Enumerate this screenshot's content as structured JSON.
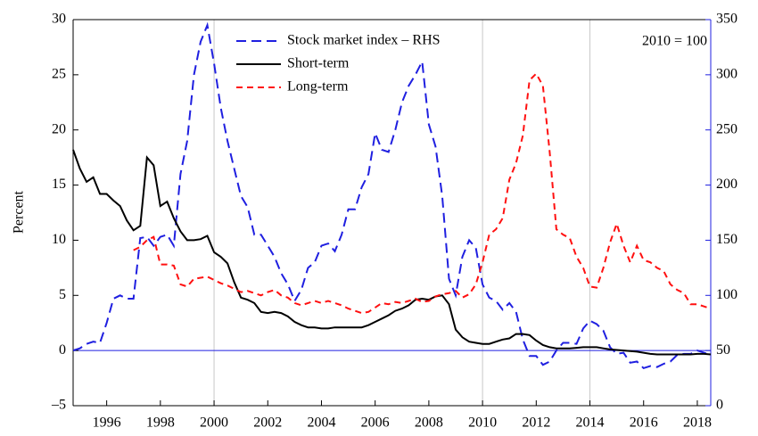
{
  "chart_data": {
    "type": "line",
    "y_label": "Percent",
    "annotation": "2010 = 100",
    "x": [
      1994.75,
      1995,
      1995.25,
      1995.5,
      1995.75,
      1996,
      1996.25,
      1996.5,
      1996.75,
      1997,
      1997.25,
      1997.5,
      1997.75,
      1998,
      1998.25,
      1998.5,
      1998.75,
      1999,
      1999.25,
      1999.5,
      1999.75,
      2000,
      2000.25,
      2000.5,
      2000.75,
      2001,
      2001.25,
      2001.5,
      2001.75,
      2002,
      2002.25,
      2002.5,
      2002.75,
      2003,
      2003.25,
      2003.5,
      2003.75,
      2004,
      2004.25,
      2004.5,
      2004.75,
      2005,
      2005.25,
      2005.5,
      2005.75,
      2006,
      2006.25,
      2006.5,
      2006.75,
      2007,
      2007.25,
      2007.5,
      2007.75,
      2008,
      2008.25,
      2008.5,
      2008.75,
      2009,
      2009.25,
      2009.5,
      2009.75,
      2010,
      2010.25,
      2010.5,
      2010.75,
      2011,
      2011.25,
      2011.5,
      2011.75,
      2012,
      2012.25,
      2012.5,
      2012.75,
      2013,
      2013.25,
      2013.5,
      2013.75,
      2014,
      2014.25,
      2014.5,
      2014.75,
      2015,
      2015.25,
      2015.5,
      2015.75,
      2016,
      2016.25,
      2016.5,
      2016.75,
      2017,
      2017.25,
      2017.5,
      2017.75,
      2018,
      2018.25,
      2018.5
    ],
    "series": [
      {
        "name": "Stock market index – RHS",
        "color": "#1f1fe0",
        "dash": "11,6",
        "axis": "y2",
        "values": [
          50,
          52,
          56,
          58,
          57,
          75,
          97,
          100,
          97,
          97,
          152,
          153,
          145,
          153,
          155,
          145,
          210,
          240,
          300,
          330,
          345,
          310,
          270,
          240,
          215,
          190,
          180,
          155,
          155,
          145,
          135,
          120,
          110,
          95,
          105,
          125,
          130,
          145,
          147,
          140,
          155,
          178,
          178,
          198,
          210,
          247,
          232,
          230,
          250,
          275,
          290,
          300,
          312,
          255,
          235,
          190,
          115,
          100,
          135,
          150,
          143,
          110,
          98,
          95,
          87,
          93,
          85,
          60,
          45,
          45,
          37,
          40,
          50,
          57,
          57,
          56,
          70,
          77,
          74,
          68,
          53,
          47,
          48,
          39,
          40,
          34,
          36,
          35,
          38,
          40,
          46,
          47,
          47,
          50,
          48,
          46
        ]
      },
      {
        "name": "Short-term",
        "color": "#000000",
        "dash": "none",
        "values": [
          18.2,
          16.5,
          15.3,
          15.7,
          14.2,
          14.2,
          13.6,
          13.1,
          11.8,
          10.9,
          11.3,
          17.5,
          16.8,
          13.1,
          13.5,
          12,
          10.8,
          10,
          10,
          10.1,
          10.4,
          8.9,
          8.5,
          7.9,
          6.2,
          4.8,
          4.6,
          4.3,
          3.5,
          3.4,
          3.5,
          3.4,
          3.1,
          2.6,
          2.3,
          2.1,
          2.1,
          2,
          2,
          2.1,
          2.1,
          2.1,
          2.1,
          2.1,
          2.3,
          2.6,
          2.9,
          3.2,
          3.6,
          3.8,
          4.1,
          4.6,
          4.7,
          4.6,
          4.9,
          5,
          4.2,
          1.9,
          1.2,
          0.8,
          0.7,
          0.6,
          0.6,
          0.8,
          1,
          1.1,
          1.5,
          1.5,
          1.4,
          0.9,
          0.5,
          0.3,
          0.2,
          0.2,
          0.2,
          0.25,
          0.3,
          0.3,
          0.3,
          0.2,
          0.1,
          0.05,
          0,
          -0.05,
          -0.1,
          -0.2,
          -0.3,
          -0.35,
          -0.35,
          -0.35,
          -0.35,
          -0.35,
          -0.35,
          -0.3,
          -0.3,
          -0.35
        ]
      },
      {
        "name": "Long-term",
        "color": "#ff1010",
        "dash": "7,5",
        "values": [
          null,
          null,
          null,
          null,
          null,
          null,
          null,
          null,
          null,
          9.1,
          9.4,
          10,
          10.3,
          7.8,
          7.8,
          7.7,
          6,
          5.8,
          6.5,
          6.6,
          6.7,
          6.4,
          6.1,
          5.9,
          5.6,
          5.3,
          5.4,
          5.2,
          5,
          5.3,
          5.5,
          5,
          4.8,
          4.3,
          4.1,
          4.3,
          4.5,
          4.3,
          4.5,
          4.3,
          4.1,
          3.8,
          3.6,
          3.4,
          3.5,
          3.9,
          4.3,
          4.2,
          4.4,
          4.3,
          4.5,
          4.7,
          4.4,
          4.5,
          4.9,
          5.1,
          5.2,
          5.4,
          4.8,
          5.1,
          6,
          8,
          10.5,
          11,
          12,
          15.5,
          17,
          19.5,
          24.5,
          25.1,
          24,
          18,
          11,
          10.5,
          10.2,
          8.5,
          7.5,
          5.8,
          5.7,
          7.5,
          9.8,
          11.5,
          9.5,
          8,
          9.5,
          8.2,
          8,
          7.5,
          7.2,
          6,
          5.5,
          5.2,
          4.2,
          4.2,
          4,
          3.8
        ]
      }
    ],
    "xlim": [
      1994.75,
      2018.5
    ],
    "xticks": [
      1996,
      1998,
      2000,
      2002,
      2004,
      2006,
      2008,
      2010,
      2012,
      2014,
      2016,
      2018
    ],
    "xgrid": [
      2000,
      2010,
      2014
    ],
    "ylim": [
      -5,
      30
    ],
    "yticks": [
      {
        "value": -5,
        "label": "–5"
      },
      0,
      5,
      10,
      15,
      20,
      25,
      30
    ],
    "y2lim": [
      0,
      350
    ],
    "y2ticks": [
      0,
      50,
      100,
      150,
      200,
      250,
      300,
      350
    ],
    "y2_color": "#1f1fe0",
    "hline": 0,
    "legend": "top"
  }
}
